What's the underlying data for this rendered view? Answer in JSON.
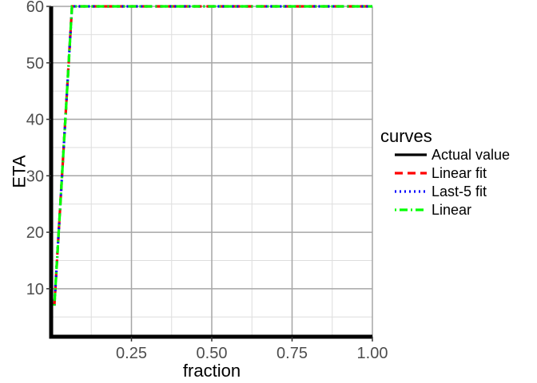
{
  "chart_data": {
    "type": "line",
    "xlabel": "fraction",
    "ylabel": "ETA",
    "xlim": [
      0.0,
      1.0
    ],
    "ylim": [
      1.5,
      60
    ],
    "x_ticks": [
      0.25,
      0.5,
      0.75,
      1.0
    ],
    "x_tick_labels": [
      "0.25",
      "0.50",
      "0.75",
      "1.00"
    ],
    "y_ticks": [
      10,
      20,
      30,
      40,
      50,
      60
    ],
    "y_tick_labels": [
      "10",
      "20",
      "30",
      "40",
      "50",
      "60"
    ],
    "x_minor_ticks": [
      0.125,
      0.375,
      0.625,
      0.875
    ],
    "y_minor_ticks": [
      5,
      15,
      25,
      35,
      45,
      55
    ],
    "grid": true,
    "legend_position": "right",
    "legend_title": "curves",
    "series": [
      {
        "name": "Actual value",
        "color": "#000000",
        "dash": "solid",
        "x": [
          0.0,
          0.0,
          1.0
        ],
        "y": [
          60,
          1.5,
          1.5
        ]
      },
      {
        "name": "Linear fit",
        "color": "#ff0000",
        "dash": "dashed",
        "x": [
          0.01,
          0.065,
          0.08,
          1.0
        ],
        "y": [
          7,
          60,
          60,
          60
        ]
      },
      {
        "name": "Last-5 fit",
        "color": "#0000ff",
        "dash": "dotted",
        "x": [
          0.01,
          0.065,
          0.08,
          1.0
        ],
        "y": [
          7,
          60,
          60,
          60
        ]
      },
      {
        "name": "Linear",
        "color": "#00ff00",
        "dash": "dotdash",
        "x": [
          0.01,
          0.065,
          0.08,
          1.0
        ],
        "y": [
          7,
          60,
          60,
          60
        ]
      }
    ]
  }
}
